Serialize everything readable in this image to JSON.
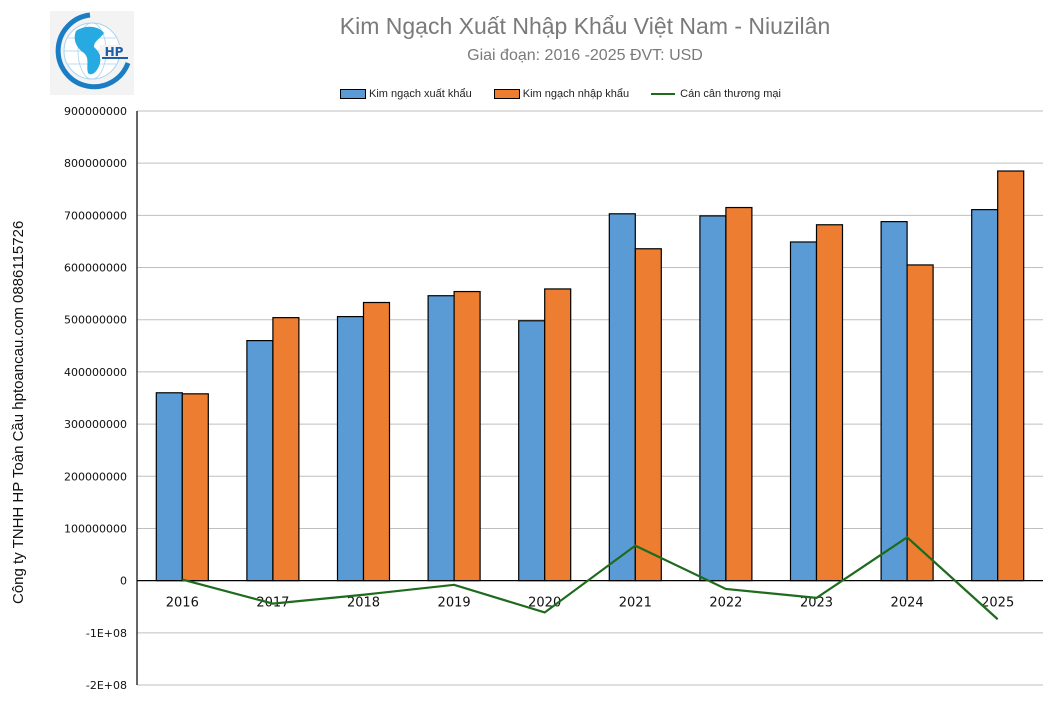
{
  "logo": {
    "text": "HP",
    "icon": "globe-logo-icon"
  },
  "header": {
    "title": "Kim Ngạch Xuất Nhập Khẩu Việt Nam - Niuzilân",
    "subtitle": "Giai đoạn: 2016 -2025  ĐVT: USD"
  },
  "side_caption": "Công ty TNHH HP Toàn Cầu hptoancau.com 0886115726",
  "legend": [
    {
      "label": "Kim ngạch xuất khẩu",
      "color": "#5b9bd5",
      "type": "bar"
    },
    {
      "label": "Kim ngạch nhập khẩu",
      "color": "#ed7d31",
      "type": "bar"
    },
    {
      "label": "Cán cân thương mại",
      "color": "#1e6b1e",
      "type": "line"
    }
  ],
  "y_axis": {
    "ticks": [
      {
        "value": 900000000,
        "label": "900000000"
      },
      {
        "value": 800000000,
        "label": "800000000"
      },
      {
        "value": 700000000,
        "label": "700000000"
      },
      {
        "value": 600000000,
        "label": "600000000"
      },
      {
        "value": 500000000,
        "label": "500000000"
      },
      {
        "value": 400000000,
        "label": "400000000"
      },
      {
        "value": 300000000,
        "label": "300000000"
      },
      {
        "value": 200000000,
        "label": "200000000"
      },
      {
        "value": 100000000,
        "label": "100000000"
      },
      {
        "value": 0,
        "label": "0"
      },
      {
        "value": -100000000,
        "label": "-1E+08"
      },
      {
        "value": -200000000,
        "label": "-2E+08"
      }
    ]
  },
  "chart_data": {
    "type": "bar",
    "title": "Kim Ngạch Xuất Nhập Khẩu Việt Nam - Niuzilân",
    "subtitle": "Giai đoạn: 2016 -2025  ĐVT: USD",
    "xlabel": "",
    "ylabel": "",
    "ylim": [
      -200000000,
      900000000
    ],
    "grid": true,
    "legend_position": "top",
    "categories": [
      "2016",
      "2017",
      "2018",
      "2019",
      "2020",
      "2021",
      "2022",
      "2023",
      "2024",
      "2025"
    ],
    "series": [
      {
        "name": "Kim ngạch xuất khẩu",
        "type": "bar",
        "color": "#5b9bd5",
        "values": [
          360000000,
          460000000,
          506000000,
          546000000,
          498000000,
          703000000,
          699000000,
          649000000,
          688000000,
          711000000
        ]
      },
      {
        "name": "Kim ngạch nhập khẩu",
        "type": "bar",
        "color": "#ed7d31",
        "values": [
          358000000,
          504000000,
          533000000,
          554000000,
          559000000,
          636000000,
          715000000,
          682000000,
          605000000,
          785000000
        ]
      },
      {
        "name": "Cán cân thương mại",
        "type": "line",
        "color": "#1e6b1e",
        "values": [
          2000000,
          -44000000,
          -27000000,
          -8000000,
          -61000000,
          67000000,
          -16000000,
          -33000000,
          83000000,
          -74000000
        ]
      }
    ]
  }
}
